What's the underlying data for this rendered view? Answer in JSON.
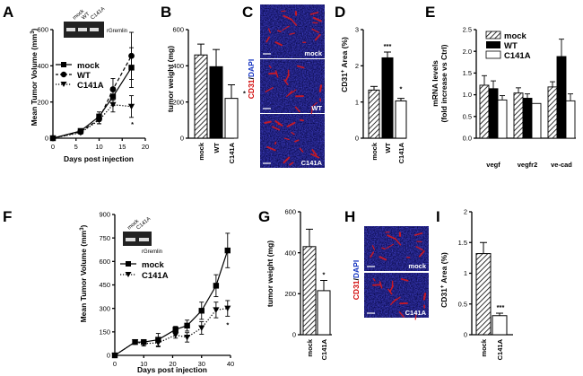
{
  "panels": {
    "A": {
      "label": "A",
      "ylabel": "Mean Tumor Volume (mm",
      "ylabel_sup": "3",
      "ylabel_close": ")",
      "xlabel": "Days post injection",
      "gel_lanes": [
        "mock",
        "WT",
        "C141A"
      ],
      "gel_band": "rGremlin",
      "sig": "*",
      "legend": [
        "mock",
        "WT",
        "C141A"
      ]
    },
    "B": {
      "label": "B",
      "ylabel": "tumor weight (mg)",
      "sig": "*"
    },
    "C": {
      "label": "C",
      "stain_red": "CD31",
      "stain_sep": "/",
      "stain_blue": "DAPI",
      "tiles": [
        "mock",
        "WT",
        "C141A"
      ]
    },
    "D": {
      "label": "D",
      "ylabel": "CD31",
      "ylabel_sup": "+",
      "ylabel_rest": " Area (%)",
      "sig_wt": "***",
      "sig_c141a": "*"
    },
    "E": {
      "label": "E",
      "ylabel_line1": "mRNA levels",
      "ylabel_line2": "(fold increase vs Ctrl)",
      "legend": [
        "mock",
        "WT",
        "C141A"
      ]
    },
    "F": {
      "label": "F",
      "ylabel": "Mean Tumor Volume (mm",
      "ylabel_sup": "3",
      "ylabel_close": ")",
      "xlabel": "Days post injection",
      "gel_lanes": [
        "mock",
        "C141A"
      ],
      "gel_band": "rGremlin",
      "sig": "*",
      "legend": [
        "mock",
        "C141A"
      ]
    },
    "G": {
      "label": "G",
      "ylabel": "tumor weight (mg)",
      "sig": "*"
    },
    "H": {
      "label": "H",
      "stain_red": "CD31",
      "stain_sep": "/",
      "stain_blue": "DAPI",
      "tiles": [
        "mock",
        "C141A"
      ]
    },
    "I": {
      "label": "I",
      "ylabel": "CD31",
      "ylabel_sup": "+",
      "ylabel_rest": " Area (%)",
      "sig": "***"
    }
  },
  "chart_data": [
    {
      "id": "A",
      "type": "line",
      "title": "",
      "xlabel": "Days post injection",
      "ylabel": "Mean Tumor Volume (mm3)",
      "xlim": [
        0,
        20
      ],
      "ylim": [
        0,
        600
      ],
      "xticks": [
        0,
        5,
        10,
        15,
        20
      ],
      "yticks": [
        0,
        200,
        400,
        600
      ],
      "series": [
        {
          "name": "mock",
          "marker": "square",
          "dash": "solid",
          "x": [
            0,
            6,
            10,
            13,
            17
          ],
          "y": [
            0,
            40,
            120,
            230,
            390
          ],
          "err": [
            0,
            8,
            25,
            50,
            110
          ]
        },
        {
          "name": "WT",
          "marker": "circle",
          "dash": "dashed",
          "x": [
            0,
            6,
            10,
            13,
            17
          ],
          "y": [
            0,
            35,
            105,
            270,
            455
          ],
          "err": [
            0,
            8,
            25,
            60,
            130
          ]
        },
        {
          "name": "C141A",
          "marker": "triangle",
          "dash": "dotted",
          "x": [
            0,
            6,
            10,
            13,
            17
          ],
          "y": [
            0,
            30,
            100,
            185,
            175
          ],
          "err": [
            0,
            8,
            20,
            40,
            60
          ]
        }
      ]
    },
    {
      "id": "B",
      "type": "bar",
      "ylabel": "tumor weight (mg)",
      "ylim": [
        0,
        600
      ],
      "yticks": [
        0,
        200,
        400,
        600
      ],
      "categories": [
        "mock",
        "WT",
        "C141A"
      ],
      "values": [
        460,
        395,
        220
      ],
      "err": [
        60,
        95,
        75
      ]
    },
    {
      "id": "D",
      "type": "bar",
      "ylabel": "CD31+ Area (%)",
      "ylim": [
        0,
        3
      ],
      "yticks": [
        0,
        1,
        2,
        3
      ],
      "categories": [
        "mock",
        "WT",
        "C141A"
      ],
      "values": [
        1.33,
        2.22,
        1.03
      ],
      "err": [
        0.1,
        0.16,
        0.07
      ]
    },
    {
      "id": "E",
      "type": "bar",
      "ylabel": "mRNA levels (fold increase vs Ctrl)",
      "ylim": [
        0,
        2.5
      ],
      "yticks": [
        0,
        0.5,
        1.0,
        1.5,
        2.0,
        2.5
      ],
      "categories": [
        "vegf",
        "vegfr2",
        "ve-cad"
      ],
      "series": [
        {
          "name": "mock",
          "values": [
            1.22,
            1.04,
            1.18
          ],
          "err": [
            0.22,
            0.12,
            0.12
          ]
        },
        {
          "name": "WT",
          "values": [
            1.14,
            0.92,
            1.88
          ],
          "err": [
            0.18,
            0.1,
            0.4
          ]
        },
        {
          "name": "C141A",
          "values": [
            0.88,
            0.8,
            0.86
          ],
          "err": [
            0.1,
            0.0,
            0.16
          ]
        }
      ]
    },
    {
      "id": "F",
      "type": "line",
      "xlabel": "Days post injection",
      "ylabel": "Mean Tumor Volume (mm3)",
      "xlim": [
        0,
        40
      ],
      "ylim": [
        0,
        900
      ],
      "xticks": [
        0,
        10,
        20,
        30,
        40
      ],
      "yticks": [
        0,
        150,
        300,
        450,
        600,
        750,
        900
      ],
      "series": [
        {
          "name": "mock",
          "marker": "square",
          "dash": "solid",
          "x": [
            0,
            7,
            10,
            15,
            21,
            25,
            30,
            35,
            39
          ],
          "y": [
            0,
            85,
            85,
            100,
            165,
            190,
            285,
            445,
            670
          ],
          "err": [
            0,
            10,
            15,
            40,
            20,
            35,
            55,
            70,
            110
          ]
        },
        {
          "name": "C141A",
          "marker": "triangle",
          "dash": "dotted",
          "x": [
            0,
            7,
            10,
            15,
            21,
            25,
            30,
            35,
            39
          ],
          "y": [
            0,
            85,
            75,
            80,
            130,
            115,
            175,
            290,
            300
          ],
          "err": [
            0,
            10,
            15,
            25,
            20,
            30,
            40,
            50,
            50
          ]
        }
      ]
    },
    {
      "id": "G",
      "type": "bar",
      "ylabel": "tumor weight (mg)",
      "ylim": [
        0,
        600
      ],
      "yticks": [
        0,
        200,
        400,
        600
      ],
      "categories": [
        "mock",
        "C141A"
      ],
      "values": [
        430,
        215
      ],
      "err": [
        85,
        50
      ]
    },
    {
      "id": "I",
      "type": "bar",
      "ylabel": "CD31+ Area (%)",
      "ylim": [
        0,
        2.0
      ],
      "yticks": [
        0.0,
        0.5,
        1.0,
        1.5,
        2.0
      ],
      "categories": [
        "mock",
        "C141A"
      ],
      "values": [
        1.32,
        0.31
      ],
      "err": [
        0.18,
        0.04
      ]
    }
  ]
}
